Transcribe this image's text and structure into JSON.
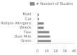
{
  "chart_data": {
    "type": "bar",
    "orientation": "horizontal",
    "categories": [
      "Grass",
      "Dust Mite",
      "Tree",
      "Weeds",
      "Multiple Allergens",
      "Cat",
      "Mold"
    ],
    "series": [
      {
        "name": "# Number of Studies",
        "color": "#888888",
        "values": [
          15,
          14,
          13,
          7,
          7,
          2,
          2
        ]
      }
    ],
    "xlim": [
      0,
      40
    ],
    "xticks": [
      0,
      10,
      20,
      30,
      40
    ],
    "grid": false,
    "legend": "upper right"
  }
}
